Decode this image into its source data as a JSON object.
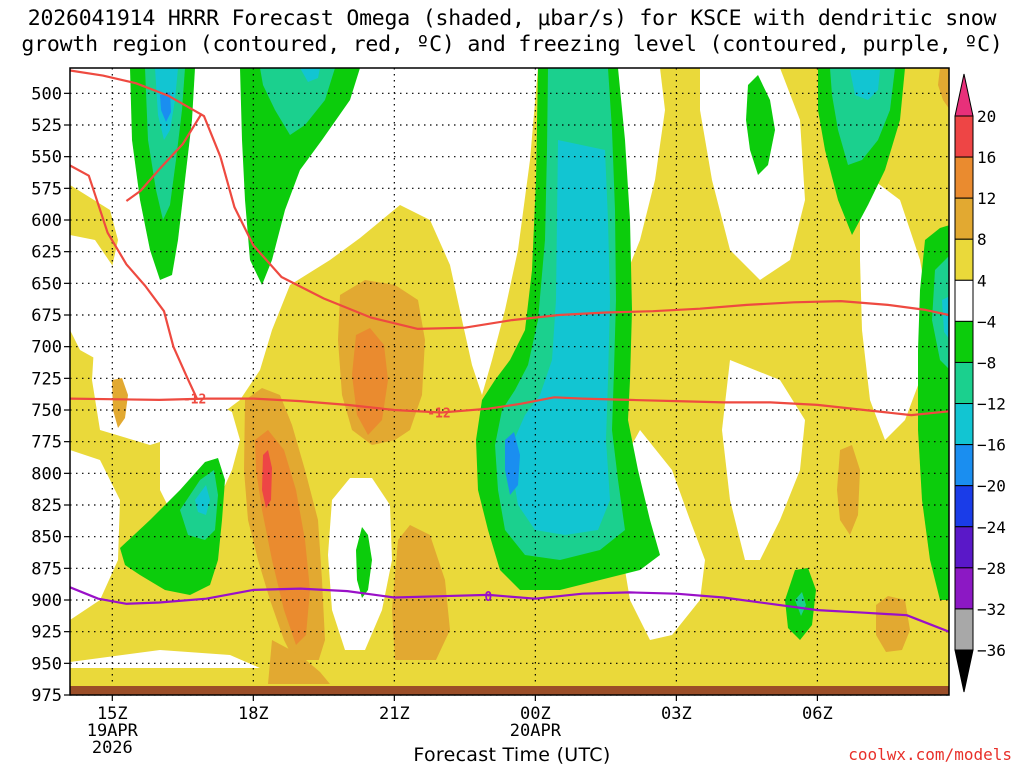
{
  "header": {
    "title_line1": "2026041914 HRRR Forecast Omega (shaded, μbar/s) for KSCE with dendritic snow",
    "title_line2": "growth region (contoured, red, ºC) and freezing level (contoured, purple, ºC)"
  },
  "footer": {
    "xlabel": "Forecast Time (UTC)",
    "credit": "coolwx.com/models"
  },
  "colors": {
    "pos_4_8": "#ead93a",
    "pos_8_12": "#e2a931",
    "pos_12_16": "#ea8b2f",
    "pos_16_20": "#ee4545",
    "neg_4_8": "#0ccc0c",
    "neg_8_12": "#1bd08e",
    "neg_12_16": "#12c5d2",
    "neg_16_20": "#1a8ef0",
    "dgz_line": "#ee4a40",
    "freezing_line": "#9a10c8",
    "ground": "#9b4e28",
    "credit": "#e8302a"
  },
  "chart_data": {
    "type": "heatmap",
    "title": "2026041914 HRRR Forecast Omega (shaded, μbar/s) for KSCE with dendritic snow growth region (contoured, red, ºC) and freezing level (contoured, purple, ºC)",
    "xlabel": "Forecast Time (UTC)",
    "ylabel": "",
    "y_axis": {
      "unit": "mb",
      "reversed": true,
      "ylim": [
        975,
        480
      ],
      "ticks": [
        500,
        525,
        550,
        575,
        600,
        625,
        650,
        675,
        700,
        725,
        750,
        775,
        800,
        825,
        850,
        875,
        900,
        925,
        950,
        975
      ]
    },
    "x_axis": {
      "range_hours_from_15Z": [
        -0.9,
        17.8
      ],
      "ticks": [
        {
          "hours": 0,
          "label": "15Z",
          "sub": [
            "19APR",
            "2026"
          ]
        },
        {
          "hours": 3,
          "label": "18Z",
          "sub": []
        },
        {
          "hours": 6,
          "label": "21Z",
          "sub": []
        },
        {
          "hours": 9,
          "label": "00Z",
          "sub": [
            "20APR"
          ]
        },
        {
          "hours": 12,
          "label": "03Z",
          "sub": []
        },
        {
          "hours": 15,
          "label": "06Z",
          "sub": []
        }
      ]
    },
    "grid": true,
    "colorbar": {
      "labels": [
        20,
        16,
        12,
        8,
        4,
        -4,
        -8,
        -12,
        -16,
        -20,
        -24,
        -28,
        -32,
        -36
      ],
      "colors": [
        "#e8307a",
        "#ee4545",
        "#ea8b2f",
        "#e2a931",
        "#ead93a",
        "#ffffff",
        "#0ccc0c",
        "#1bd08e",
        "#12c5d2",
        "#1a8ef0",
        "#1a3ce8",
        "#5a18c8",
        "#8c18c4",
        "#a8a8a8",
        "#000000"
      ]
    },
    "series": [
      {
        "name": "-12",
        "color": "#ee4a40",
        "label_points": [
          [
            1.75,
            741
          ],
          [
            6.95,
            752
          ]
        ],
        "points": [
          [
            -0.9,
            741
          ],
          [
            1.0,
            742
          ],
          [
            2.0,
            741
          ],
          [
            3.0,
            741
          ],
          [
            4.0,
            743
          ],
          [
            5.0,
            746
          ],
          [
            6.0,
            750
          ],
          [
            7.0,
            752
          ],
          [
            8.0,
            749
          ],
          [
            8.7,
            745
          ],
          [
            9.4,
            740
          ],
          [
            10,
            741
          ],
          [
            11,
            742
          ],
          [
            12,
            743
          ],
          [
            13,
            744
          ],
          [
            14,
            744
          ],
          [
            15,
            746
          ],
          [
            16,
            750
          ],
          [
            17,
            754
          ],
          [
            17.8,
            751
          ]
        ]
      },
      {
        "name": "-12",
        "color": "#ee4a40",
        "points": [
          [
            -0.9,
            557
          ],
          [
            -0.5,
            565
          ],
          [
            -0.1,
            610
          ],
          [
            0.3,
            635
          ],
          [
            0.7,
            652
          ],
          [
            1.1,
            672
          ],
          [
            1.3,
            700
          ],
          [
            1.6,
            725
          ],
          [
            1.8,
            741
          ]
        ]
      },
      {
        "name": "-12",
        "color": "#ee4a40",
        "points": [
          [
            -0.9,
            482
          ],
          [
            -0.2,
            486
          ],
          [
            0.5,
            492
          ],
          [
            1.2,
            502
          ],
          [
            1.95,
            518
          ],
          [
            2.3,
            550
          ],
          [
            2.6,
            590
          ],
          [
            3.0,
            620
          ],
          [
            3.6,
            645
          ],
          [
            4.5,
            662
          ],
          [
            5.5,
            677
          ],
          [
            6.5,
            686
          ],
          [
            7.5,
            685
          ],
          [
            8.5,
            679
          ],
          [
            9.5,
            675
          ],
          [
            10.5,
            673
          ],
          [
            11.5,
            672
          ],
          [
            12.5,
            670
          ],
          [
            13.5,
            667
          ],
          [
            14.5,
            665
          ],
          [
            15.5,
            664
          ],
          [
            16.5,
            667
          ],
          [
            17.3,
            671
          ],
          [
            17.8,
            675
          ]
        ]
      },
      {
        "name": "-12",
        "color": "#ee4a40",
        "points": [
          [
            1.9,
            516
          ],
          [
            1.5,
            540
          ],
          [
            1.0,
            560
          ],
          [
            0.6,
            577
          ],
          [
            0.3,
            585
          ]
        ]
      },
      {
        "name": "0",
        "color": "#9a10c8",
        "label_points": [
          [
            8.0,
            897
          ]
        ],
        "points": [
          [
            -0.9,
            890
          ],
          [
            -0.3,
            899
          ],
          [
            0.3,
            903
          ],
          [
            1.0,
            902
          ],
          [
            2.0,
            899
          ],
          [
            3.0,
            892
          ],
          [
            4.0,
            891
          ],
          [
            5.0,
            893
          ],
          [
            6.0,
            898
          ],
          [
            7.0,
            897
          ],
          [
            8.0,
            896
          ],
          [
            9.0,
            899
          ],
          [
            10.0,
            895
          ],
          [
            11.0,
            894
          ],
          [
            12.0,
            895
          ],
          [
            13.0,
            898
          ],
          [
            14.0,
            903
          ],
          [
            15.0,
            908
          ],
          [
            16.0,
            910
          ],
          [
            16.9,
            912
          ],
          [
            17.8,
            925
          ]
        ]
      }
    ]
  }
}
